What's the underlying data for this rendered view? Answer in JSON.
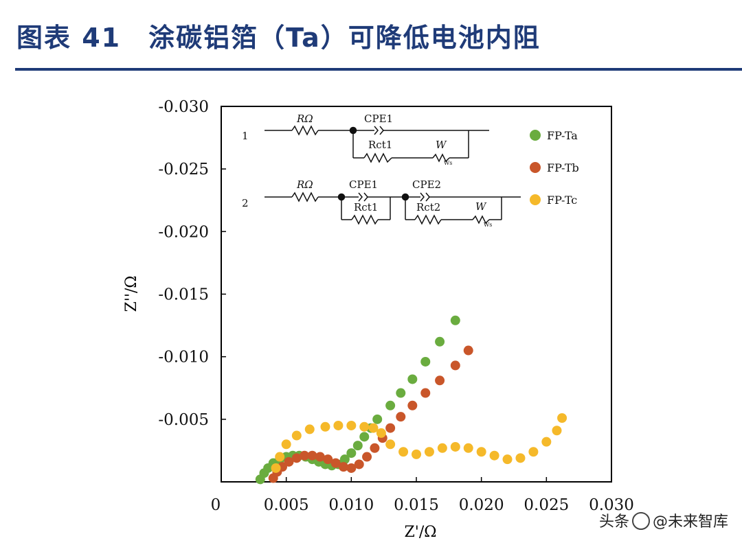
{
  "header": {
    "title": "图表 41　涂碳铝箔（Ta）可降低电池内阻"
  },
  "watermark": {
    "platform": "头条",
    "account": "@未来智库"
  },
  "colors": {
    "header": "#1f3b78",
    "FP-Ta": "#6aac3f",
    "FP-Tb": "#c9562a",
    "FP-Tc": "#f5b92a"
  },
  "circuit": {
    "row1_number": "1",
    "row2_number": "2",
    "r_omega": "RΩ",
    "cpe1": "CPE1",
    "cpe2": "CPE2",
    "rct1": "Rct1",
    "rct2": "Rct2",
    "w": "W",
    "w_sub": "Ws"
  },
  "chart_data": {
    "type": "scatter",
    "xlabel": "Z'/Ω",
    "ylabel": "Z''/Ω",
    "xlim": [
      0,
      0.03
    ],
    "ylim": [
      0,
      -0.03
    ],
    "x_ticks": [
      "0",
      "0.005",
      "0.010",
      "0.015",
      "0.020",
      "0.025",
      "0.030"
    ],
    "x_tick_values": [
      0,
      0.005,
      0.01,
      0.015,
      0.02,
      0.025,
      0.03
    ],
    "y_ticks": [
      "-0.030",
      "-0.025",
      "-0.020",
      "-0.015",
      "-0.010",
      "-0.005"
    ],
    "y_tick_values": [
      -0.03,
      -0.025,
      -0.02,
      -0.015,
      -0.01,
      -0.005
    ],
    "legend_position": "top-right",
    "series": [
      {
        "name": "FP-Ta",
        "x": [
          0.003,
          0.0033,
          0.0036,
          0.004,
          0.0045,
          0.005,
          0.0055,
          0.006,
          0.0065,
          0.007,
          0.0075,
          0.008,
          0.0085,
          0.009,
          0.0095,
          0.01,
          0.0105,
          0.011,
          0.0115,
          0.012,
          0.013,
          0.0138,
          0.0147,
          0.0157,
          0.0168,
          0.018
        ],
        "y": [
          -0.0002,
          -0.0007,
          -0.0011,
          -0.0015,
          -0.0018,
          -0.002,
          -0.0021,
          -0.0021,
          -0.002,
          -0.0018,
          -0.0016,
          -0.0014,
          -0.0013,
          -0.0014,
          -0.0018,
          -0.0023,
          -0.0029,
          -0.0036,
          -0.0043,
          -0.005,
          -0.0061,
          -0.0071,
          -0.0082,
          -0.0096,
          -0.0112,
          -0.0129
        ]
      },
      {
        "name": "FP-Tb",
        "x": [
          0.004,
          0.0043,
          0.0047,
          0.0052,
          0.0058,
          0.0064,
          0.007,
          0.0076,
          0.0082,
          0.0088,
          0.0094,
          0.01,
          0.0106,
          0.0112,
          0.0118,
          0.0124,
          0.013,
          0.0138,
          0.0147,
          0.0157,
          0.0168,
          0.018,
          0.019
        ],
        "y": [
          -0.0003,
          -0.0008,
          -0.0012,
          -0.0016,
          -0.0019,
          -0.0021,
          -0.0021,
          -0.002,
          -0.0018,
          -0.0015,
          -0.0012,
          -0.0011,
          -0.0014,
          -0.002,
          -0.0027,
          -0.0035,
          -0.0043,
          -0.0052,
          -0.0061,
          -0.0071,
          -0.0081,
          -0.0093,
          -0.0105
        ]
      },
      {
        "name": "FP-Tc",
        "x": [
          0.0042,
          0.0045,
          0.005,
          0.0058,
          0.0068,
          0.008,
          0.009,
          0.01,
          0.011,
          0.0117,
          0.0123,
          0.013,
          0.014,
          0.015,
          0.016,
          0.017,
          0.018,
          0.019,
          0.02,
          0.021,
          0.022,
          0.023,
          0.024,
          0.025,
          0.0258,
          0.0262
        ],
        "y": [
          -0.0011,
          -0.002,
          -0.003,
          -0.0037,
          -0.0042,
          -0.0044,
          -0.0045,
          -0.0045,
          -0.0044,
          -0.0043,
          -0.0039,
          -0.003,
          -0.0024,
          -0.0022,
          -0.0024,
          -0.0027,
          -0.0028,
          -0.0027,
          -0.0024,
          -0.0021,
          -0.0018,
          -0.0019,
          -0.0024,
          -0.0032,
          -0.0041,
          -0.0051
        ]
      }
    ]
  }
}
